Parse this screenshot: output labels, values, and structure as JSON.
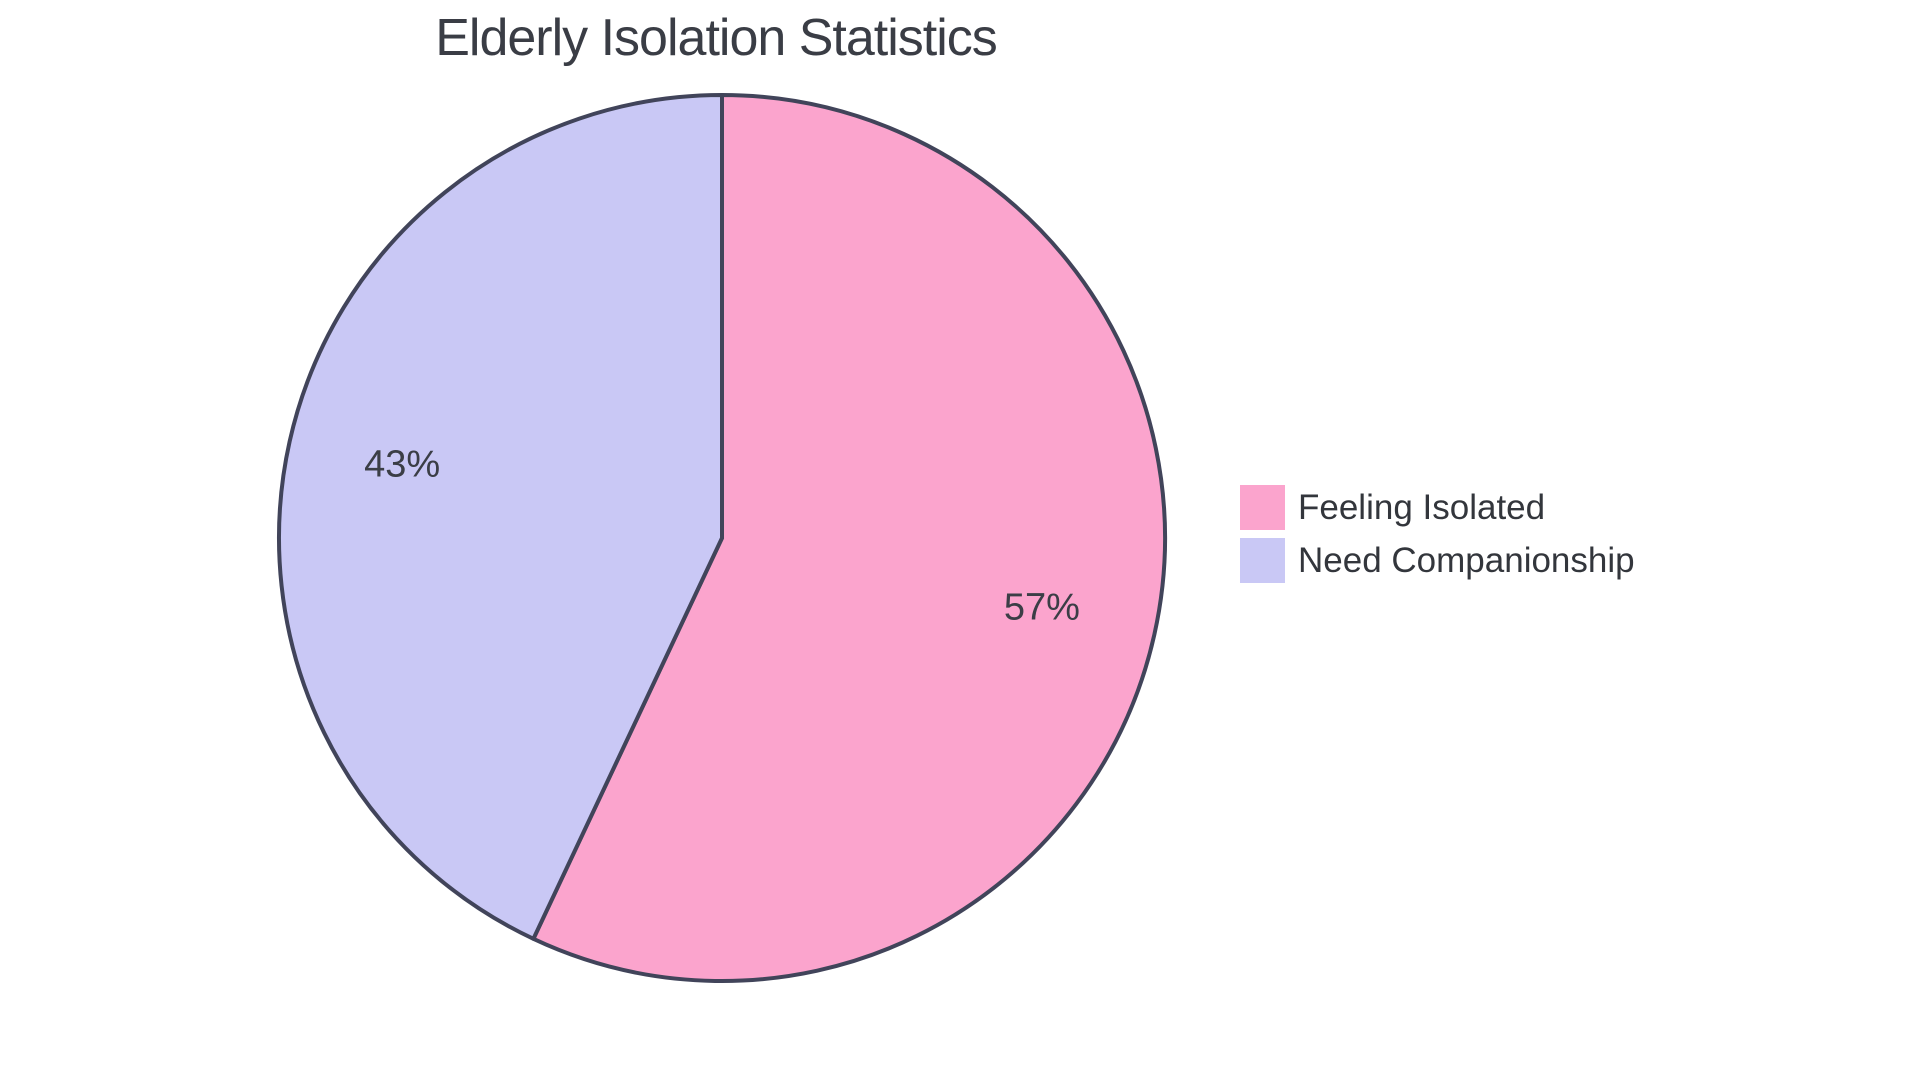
{
  "page": {
    "background_color": "#ffffff"
  },
  "chart_data": {
    "type": "pie",
    "title": "Elderly Isolation Statistics",
    "slices": [
      {
        "label": "Feeling Isolated",
        "value": 57,
        "display": "57%",
        "color": "#FBA4CD"
      },
      {
        "label": "Need Companionship",
        "value": 43,
        "display": "43%",
        "color": "#C9C8F5"
      }
    ],
    "start_angle": "12 o'clock",
    "direction": "clockwise",
    "stroke_color": "#41445A",
    "stroke_width": 4,
    "label_color": "#3b3e46",
    "title_color": "#3a3d45",
    "legend_text_color": "#33363c",
    "legend_position": "right"
  }
}
